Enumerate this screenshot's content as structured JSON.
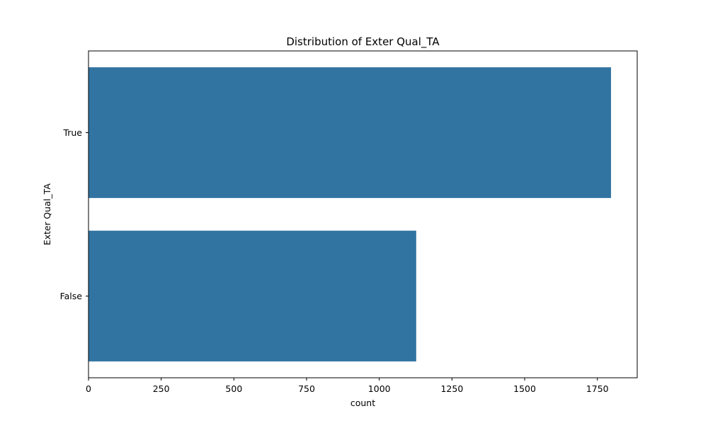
{
  "chart_data": {
    "type": "bar",
    "orientation": "horizontal",
    "title": "Distribution of Exter Qual_TA",
    "xlabel": "count",
    "ylabel": "Exter Qual_TA",
    "categories": [
      "True",
      "False"
    ],
    "values": [
      1797,
      1127
    ],
    "xlim": [
      0,
      1887
    ],
    "xticks": [
      0,
      250,
      500,
      750,
      1000,
      1250,
      1500,
      1750
    ],
    "grid": false,
    "bar_color": "#3274a1"
  }
}
